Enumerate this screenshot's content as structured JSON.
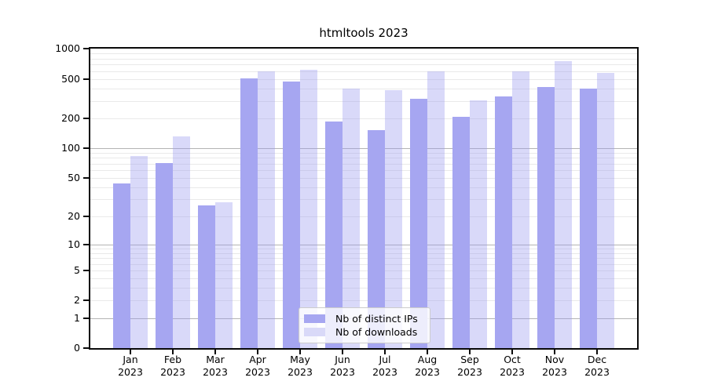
{
  "title": "htmltools 2023",
  "chart_data": {
    "type": "bar",
    "title": "htmltools 2023",
    "categories": [
      "Jan",
      "Feb",
      "Mar",
      "Apr",
      "May",
      "Jun",
      "Jul",
      "Aug",
      "Sep",
      "Oct",
      "Nov",
      "Dec"
    ],
    "category_year": "2023",
    "series": [
      {
        "name": "Nb of distinct IPs",
        "color": "#a6a6f1",
        "values": [
          44,
          71,
          26,
          503,
          474,
          186,
          152,
          314,
          208,
          333,
          414,
          400
        ]
      },
      {
        "name": "Nb of downloads",
        "color": "rgba(154,154,240,0.38)",
        "legend_swatch_color": "#d9d9f8",
        "values": [
          84,
          132,
          28,
          595,
          620,
          400,
          385,
          595,
          306,
          595,
          758,
          572
        ]
      }
    ],
    "yscale": "log1p",
    "ylim": [
      0,
      1000
    ],
    "y_ticks": [
      0,
      1,
      2,
      5,
      10,
      20,
      50,
      100,
      200,
      500,
      1000
    ],
    "y_major_gridlines": [
      1,
      10,
      100,
      1000
    ],
    "grid": true,
    "legend_position": "lower center",
    "xlabel": "",
    "ylabel": ""
  },
  "colors": {
    "background": "#ffffff",
    "spine": "#0a0a0a",
    "grid_major": "#b4b4b4",
    "grid_minor": "#e9e9e9",
    "legend_background": "rgba(255,255,255,0.8)",
    "legend_border": "#cccccc",
    "text": "#000000"
  }
}
